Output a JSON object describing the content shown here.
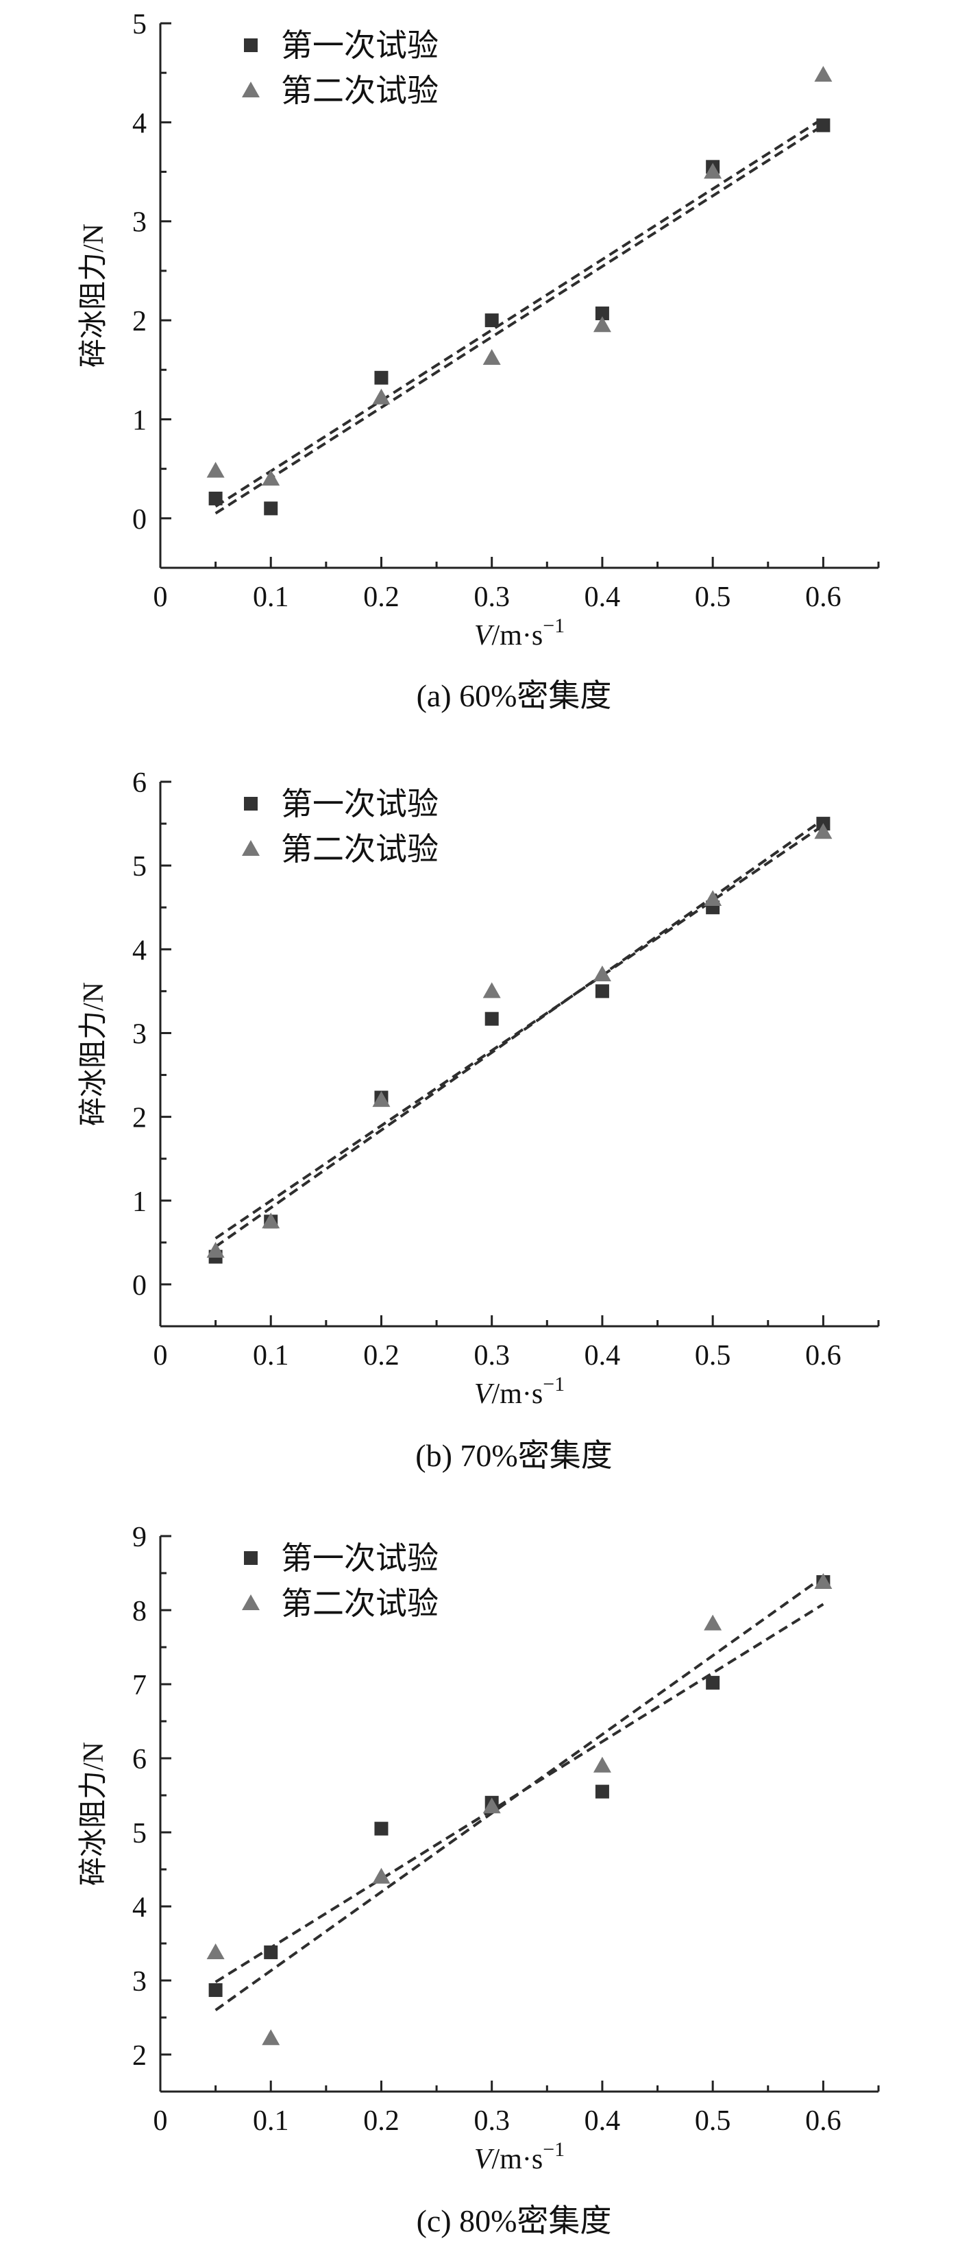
{
  "chart_data": [
    {
      "type": "scatter",
      "caption": "(a) 60%密集度",
      "xlabel_var": "V",
      "xlabel_unit": "/m·s",
      "xlabel_exp": "−1",
      "ylabel": "碎冰阻力/N",
      "xlim": [
        0,
        0.65
      ],
      "ylim": [
        -0.5,
        5
      ],
      "xticks": [
        "0",
        "0.1",
        "0.2",
        "0.3",
        "0.4",
        "0.5",
        "0.6"
      ],
      "yticks": [
        "0",
        "1",
        "2",
        "3",
        "4",
        "5"
      ],
      "legend_position": "top-left",
      "series": [
        {
          "name": "第一次试验",
          "marker": "square",
          "color": "#333333",
          "x": [
            0.05,
            0.1,
            0.2,
            0.3,
            0.4,
            0.5,
            0.6
          ],
          "y": [
            0.2,
            0.1,
            1.42,
            2.0,
            2.07,
            3.55,
            3.97
          ],
          "fit": [
            [
              0.05,
              0.05
            ],
            [
              0.6,
              3.97
            ]
          ]
        },
        {
          "name": "第二次试验",
          "marker": "triangle",
          "color": "#777777",
          "x": [
            0.05,
            0.1,
            0.2,
            0.3,
            0.4,
            0.5,
            0.6
          ],
          "y": [
            0.48,
            0.4,
            1.22,
            1.62,
            1.95,
            3.5,
            4.48
          ],
          "fit": [
            [
              0.05,
              0.12
            ],
            [
              0.6,
              4.04
            ]
          ]
        }
      ]
    },
    {
      "type": "scatter",
      "caption": "(b) 70%密集度",
      "xlabel_var": "V",
      "xlabel_unit": "/m·s",
      "xlabel_exp": "−1",
      "ylabel": "碎冰阻力/N",
      "xlim": [
        0,
        0.65
      ],
      "ylim": [
        -0.5,
        6
      ],
      "xticks": [
        "0",
        "0.1",
        "0.2",
        "0.3",
        "0.4",
        "0.5",
        "0.6"
      ],
      "yticks": [
        "0",
        "1",
        "2",
        "3",
        "4",
        "5",
        "6"
      ],
      "legend_position": "top-left",
      "series": [
        {
          "name": "第一次试验",
          "marker": "square",
          "color": "#333333",
          "x": [
            0.05,
            0.1,
            0.2,
            0.3,
            0.4,
            0.5,
            0.6
          ],
          "y": [
            0.33,
            0.75,
            2.23,
            3.17,
            3.5,
            4.5,
            5.5
          ],
          "fit": [
            [
              0.05,
              0.45
            ],
            [
              0.6,
              5.55
            ]
          ]
        },
        {
          "name": "第二次试验",
          "marker": "triangle",
          "color": "#777777",
          "x": [
            0.05,
            0.1,
            0.2,
            0.3,
            0.4,
            0.5,
            0.6
          ],
          "y": [
            0.4,
            0.75,
            2.2,
            3.5,
            3.7,
            4.6,
            5.4
          ],
          "fit": [
            [
              0.05,
              0.55
            ],
            [
              0.6,
              5.48
            ]
          ]
        }
      ]
    },
    {
      "type": "scatter",
      "caption": "(c) 80%密集度",
      "xlabel_var": "V",
      "xlabel_unit": "/m·s",
      "xlabel_exp": "−1",
      "ylabel": "碎冰阻力/N",
      "xlim": [
        0,
        0.65
      ],
      "ylim": [
        1.5,
        9
      ],
      "xticks": [
        "0",
        "0.1",
        "0.2",
        "0.3",
        "0.4",
        "0.5",
        "0.6"
      ],
      "yticks": [
        "2",
        "3",
        "4",
        "5",
        "6",
        "7",
        "8",
        "9"
      ],
      "legend_position": "top-left",
      "series": [
        {
          "name": "第一次试验",
          "marker": "square",
          "color": "#333333",
          "x": [
            0.05,
            0.1,
            0.2,
            0.3,
            0.4,
            0.5,
            0.6
          ],
          "y": [
            2.87,
            3.38,
            5.05,
            5.4,
            5.55,
            7.02,
            8.38
          ],
          "fit": [
            [
              0.05,
              2.98
            ],
            [
              0.6,
              8.08
            ]
          ]
        },
        {
          "name": "第二次试验",
          "marker": "triangle",
          "color": "#777777",
          "x": [
            0.05,
            0.1,
            0.2,
            0.3,
            0.4,
            0.5,
            0.6
          ],
          "y": [
            3.38,
            2.22,
            4.4,
            5.35,
            5.9,
            7.82,
            8.38
          ],
          "fit": [
            [
              0.05,
              2.6
            ],
            [
              0.6,
              8.45
            ]
          ]
        }
      ]
    }
  ]
}
